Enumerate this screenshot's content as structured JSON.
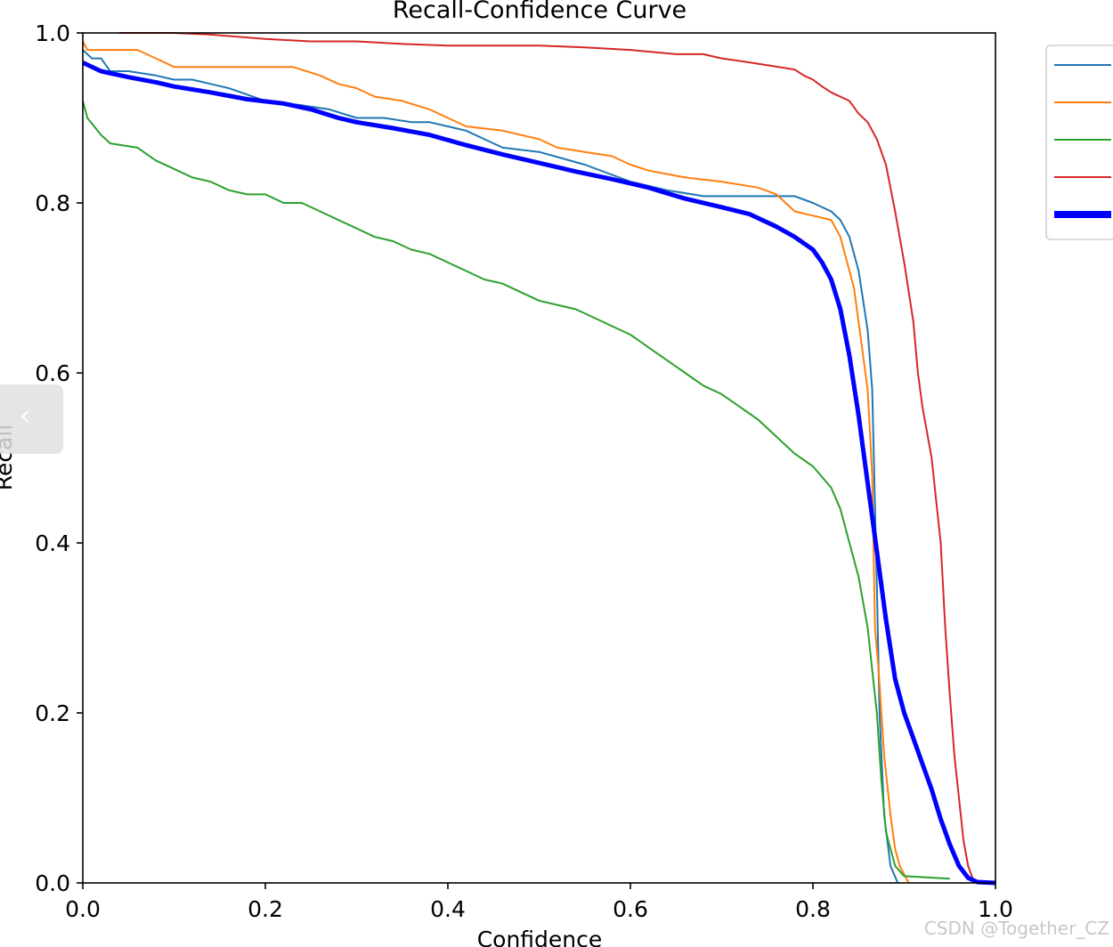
{
  "chart_data": {
    "type": "line",
    "title": "Recall-Confidence Curve",
    "xlabel": "Confidence",
    "ylabel": "Recall",
    "xlim": [
      0,
      1
    ],
    "ylim": [
      0,
      1
    ],
    "xticks": [
      "0.0",
      "0.2",
      "0.4",
      "0.6",
      "0.8",
      "1.0"
    ],
    "yticks": [
      "0.0",
      "0.2",
      "0.4",
      "0.6",
      "0.8",
      "1.0"
    ],
    "grid": false,
    "legend": "top-right",
    "series": [
      {
        "color": "#1f77b4",
        "width": 2,
        "points": [
          [
            0,
            0.98
          ],
          [
            0.01,
            0.97
          ],
          [
            0.02,
            0.97
          ],
          [
            0.03,
            0.955
          ],
          [
            0.05,
            0.955
          ],
          [
            0.08,
            0.95
          ],
          [
            0.1,
            0.945
          ],
          [
            0.12,
            0.945
          ],
          [
            0.14,
            0.94
          ],
          [
            0.16,
            0.935
          ],
          [
            0.2,
            0.92
          ],
          [
            0.24,
            0.915
          ],
          [
            0.27,
            0.91
          ],
          [
            0.3,
            0.9
          ],
          [
            0.33,
            0.9
          ],
          [
            0.36,
            0.895
          ],
          [
            0.38,
            0.895
          ],
          [
            0.4,
            0.89
          ],
          [
            0.42,
            0.885
          ],
          [
            0.44,
            0.875
          ],
          [
            0.46,
            0.865
          ],
          [
            0.5,
            0.86
          ],
          [
            0.55,
            0.845
          ],
          [
            0.6,
            0.825
          ],
          [
            0.64,
            0.815
          ],
          [
            0.68,
            0.808
          ],
          [
            0.75,
            0.808
          ],
          [
            0.78,
            0.808
          ],
          [
            0.8,
            0.8
          ],
          [
            0.82,
            0.79
          ],
          [
            0.83,
            0.78
          ],
          [
            0.84,
            0.76
          ],
          [
            0.85,
            0.72
          ],
          [
            0.86,
            0.65
          ],
          [
            0.865,
            0.58
          ],
          [
            0.87,
            0.35
          ],
          [
            0.873,
            0.2
          ],
          [
            0.878,
            0.08
          ],
          [
            0.885,
            0.02
          ],
          [
            0.893,
            0.0
          ]
        ]
      },
      {
        "color": "#ff7f0e",
        "width": 2,
        "points": [
          [
            0,
            0.99
          ],
          [
            0.005,
            0.98
          ],
          [
            0.06,
            0.98
          ],
          [
            0.08,
            0.97
          ],
          [
            0.1,
            0.96
          ],
          [
            0.15,
            0.96
          ],
          [
            0.23,
            0.96
          ],
          [
            0.26,
            0.95
          ],
          [
            0.28,
            0.94
          ],
          [
            0.3,
            0.935
          ],
          [
            0.32,
            0.925
          ],
          [
            0.35,
            0.92
          ],
          [
            0.38,
            0.91
          ],
          [
            0.4,
            0.9
          ],
          [
            0.42,
            0.89
          ],
          [
            0.46,
            0.885
          ],
          [
            0.5,
            0.875
          ],
          [
            0.52,
            0.865
          ],
          [
            0.55,
            0.86
          ],
          [
            0.58,
            0.855
          ],
          [
            0.6,
            0.845
          ],
          [
            0.62,
            0.838
          ],
          [
            0.66,
            0.83
          ],
          [
            0.7,
            0.825
          ],
          [
            0.74,
            0.818
          ],
          [
            0.76,
            0.81
          ],
          [
            0.78,
            0.79
          ],
          [
            0.8,
            0.785
          ],
          [
            0.82,
            0.78
          ],
          [
            0.83,
            0.76
          ],
          [
            0.84,
            0.72
          ],
          [
            0.845,
            0.7
          ],
          [
            0.85,
            0.66
          ],
          [
            0.86,
            0.58
          ],
          [
            0.865,
            0.48
          ],
          [
            0.868,
            0.3
          ],
          [
            0.872,
            0.25
          ],
          [
            0.878,
            0.15
          ],
          [
            0.885,
            0.08
          ],
          [
            0.89,
            0.04
          ],
          [
            0.895,
            0.02
          ],
          [
            0.905,
            0.0
          ]
        ]
      },
      {
        "color": "#2ca02c",
        "width": 2,
        "points": [
          [
            0,
            0.92
          ],
          [
            0.005,
            0.9
          ],
          [
            0.02,
            0.88
          ],
          [
            0.03,
            0.87
          ],
          [
            0.06,
            0.865
          ],
          [
            0.08,
            0.85
          ],
          [
            0.1,
            0.84
          ],
          [
            0.12,
            0.83
          ],
          [
            0.14,
            0.825
          ],
          [
            0.16,
            0.815
          ],
          [
            0.18,
            0.81
          ],
          [
            0.2,
            0.81
          ],
          [
            0.22,
            0.8
          ],
          [
            0.24,
            0.8
          ],
          [
            0.26,
            0.79
          ],
          [
            0.28,
            0.78
          ],
          [
            0.3,
            0.77
          ],
          [
            0.32,
            0.76
          ],
          [
            0.34,
            0.755
          ],
          [
            0.36,
            0.745
          ],
          [
            0.38,
            0.74
          ],
          [
            0.4,
            0.73
          ],
          [
            0.42,
            0.72
          ],
          [
            0.44,
            0.71
          ],
          [
            0.46,
            0.705
          ],
          [
            0.48,
            0.695
          ],
          [
            0.5,
            0.685
          ],
          [
            0.52,
            0.68
          ],
          [
            0.54,
            0.675
          ],
          [
            0.56,
            0.665
          ],
          [
            0.58,
            0.655
          ],
          [
            0.6,
            0.645
          ],
          [
            0.62,
            0.63
          ],
          [
            0.64,
            0.615
          ],
          [
            0.66,
            0.6
          ],
          [
            0.68,
            0.585
          ],
          [
            0.7,
            0.575
          ],
          [
            0.72,
            0.56
          ],
          [
            0.74,
            0.545
          ],
          [
            0.76,
            0.525
          ],
          [
            0.78,
            0.505
          ],
          [
            0.8,
            0.49
          ],
          [
            0.82,
            0.465
          ],
          [
            0.83,
            0.44
          ],
          [
            0.84,
            0.4
          ],
          [
            0.85,
            0.36
          ],
          [
            0.86,
            0.3
          ],
          [
            0.865,
            0.25
          ],
          [
            0.87,
            0.2
          ],
          [
            0.875,
            0.12
          ],
          [
            0.88,
            0.06
          ],
          [
            0.89,
            0.02
          ],
          [
            0.9,
            0.008
          ],
          [
            0.95,
            0.005
          ]
        ]
      },
      {
        "color": "#d62728",
        "width": 2,
        "points": [
          [
            0.04,
            1.0
          ],
          [
            0.1,
            1.0
          ],
          [
            0.14,
            0.998
          ],
          [
            0.2,
            0.993
          ],
          [
            0.25,
            0.99
          ],
          [
            0.3,
            0.99
          ],
          [
            0.35,
            0.987
          ],
          [
            0.4,
            0.985
          ],
          [
            0.45,
            0.985
          ],
          [
            0.5,
            0.985
          ],
          [
            0.55,
            0.983
          ],
          [
            0.6,
            0.98
          ],
          [
            0.65,
            0.975
          ],
          [
            0.68,
            0.975
          ],
          [
            0.7,
            0.97
          ],
          [
            0.72,
            0.967
          ],
          [
            0.75,
            0.962
          ],
          [
            0.78,
            0.957
          ],
          [
            0.79,
            0.95
          ],
          [
            0.8,
            0.945
          ],
          [
            0.81,
            0.937
          ],
          [
            0.82,
            0.93
          ],
          [
            0.84,
            0.92
          ],
          [
            0.85,
            0.905
          ],
          [
            0.86,
            0.895
          ],
          [
            0.87,
            0.875
          ],
          [
            0.88,
            0.845
          ],
          [
            0.89,
            0.79
          ],
          [
            0.9,
            0.73
          ],
          [
            0.91,
            0.66
          ],
          [
            0.915,
            0.6
          ],
          [
            0.92,
            0.56
          ],
          [
            0.93,
            0.5
          ],
          [
            0.935,
            0.45
          ],
          [
            0.94,
            0.4
          ],
          [
            0.945,
            0.3
          ],
          [
            0.95,
            0.22
          ],
          [
            0.955,
            0.15
          ],
          [
            0.96,
            0.1
          ],
          [
            0.965,
            0.05
          ],
          [
            0.97,
            0.02
          ],
          [
            0.975,
            0.005
          ],
          [
            0.98,
            0.0
          ]
        ]
      },
      {
        "color": "#0000ff",
        "width": 5,
        "points": [
          [
            0,
            0.965
          ],
          [
            0.02,
            0.955
          ],
          [
            0.05,
            0.948
          ],
          [
            0.08,
            0.942
          ],
          [
            0.1,
            0.937
          ],
          [
            0.14,
            0.93
          ],
          [
            0.18,
            0.922
          ],
          [
            0.22,
            0.917
          ],
          [
            0.25,
            0.91
          ],
          [
            0.28,
            0.9
          ],
          [
            0.3,
            0.895
          ],
          [
            0.34,
            0.888
          ],
          [
            0.38,
            0.88
          ],
          [
            0.42,
            0.868
          ],
          [
            0.46,
            0.857
          ],
          [
            0.5,
            0.847
          ],
          [
            0.54,
            0.837
          ],
          [
            0.58,
            0.828
          ],
          [
            0.62,
            0.818
          ],
          [
            0.66,
            0.805
          ],
          [
            0.7,
            0.795
          ],
          [
            0.73,
            0.787
          ],
          [
            0.76,
            0.772
          ],
          [
            0.78,
            0.76
          ],
          [
            0.8,
            0.745
          ],
          [
            0.81,
            0.73
          ],
          [
            0.82,
            0.71
          ],
          [
            0.83,
            0.675
          ],
          [
            0.84,
            0.62
          ],
          [
            0.85,
            0.55
          ],
          [
            0.86,
            0.47
          ],
          [
            0.87,
            0.39
          ],
          [
            0.88,
            0.31
          ],
          [
            0.89,
            0.24
          ],
          [
            0.9,
            0.2
          ],
          [
            0.91,
            0.17
          ],
          [
            0.92,
            0.14
          ],
          [
            0.93,
            0.11
          ],
          [
            0.94,
            0.075
          ],
          [
            0.95,
            0.045
          ],
          [
            0.96,
            0.02
          ],
          [
            0.97,
            0.006
          ],
          [
            0.98,
            0.001
          ],
          [
            1.0,
            0.0
          ]
        ]
      }
    ]
  },
  "watermark": "CSDN @Together_CZ",
  "back_tab": {
    "icon": "chevron-left-icon",
    "glyph": "‹"
  }
}
